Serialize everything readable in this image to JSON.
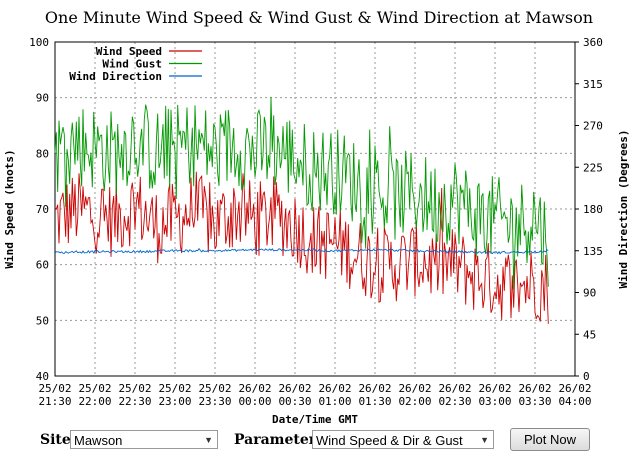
{
  "title": "One Minute Wind Speed & Wind Gust & Wind Direction at Mawson",
  "chart_data": {
    "type": "line",
    "title": "One Minute Wind Speed & Wind Gust & Wind Direction at Mawson",
    "xlabel": "Date/Time GMT",
    "ylabel": "Wind Speed (knots)",
    "y2label": "Wind Direction (Degrees)",
    "ylim": [
      40,
      100
    ],
    "y2lim": [
      0,
      360
    ],
    "yticks": [
      "100",
      "90",
      "80",
      "70",
      "60",
      "50",
      "40"
    ],
    "y2ticks": [
      "360",
      "315",
      "270",
      "225",
      "180",
      "135",
      "90",
      "45",
      "0"
    ],
    "xticks": [
      {
        "date": "25/02",
        "time": "21:30"
      },
      {
        "date": "25/02",
        "time": "22:00"
      },
      {
        "date": "25/02",
        "time": "22:30"
      },
      {
        "date": "25/02",
        "time": "23:00"
      },
      {
        "date": "25/02",
        "time": "23:30"
      },
      {
        "date": "26/02",
        "time": "00:00"
      },
      {
        "date": "26/02",
        "time": "00:30"
      },
      {
        "date": "26/02",
        "time": "01:00"
      },
      {
        "date": "26/02",
        "time": "01:30"
      },
      {
        "date": "26/02",
        "time": "02:00"
      },
      {
        "date": "26/02",
        "time": "02:30"
      },
      {
        "date": "26/02",
        "time": "03:00"
      },
      {
        "date": "26/02",
        "time": "03:30"
      },
      {
        "date": "26/02",
        "time": "04:00"
      }
    ],
    "x_unit": "minutes since 25/02 21:30 GMT",
    "xlim": [
      0,
      390
    ],
    "grid": true,
    "legend_position": "top-left",
    "series": [
      {
        "name": "Wind Speed",
        "axis": "left",
        "color": "#cc0000",
        "x": [
          0,
          15,
          30,
          45,
          60,
          75,
          90,
          105,
          120,
          135,
          150,
          165,
          180,
          195,
          210,
          225,
          240,
          255,
          270,
          285,
          300,
          315,
          330,
          345,
          360,
          370
        ],
        "values": [
          68,
          70,
          69,
          68,
          71,
          67,
          68,
          70,
          67,
          70,
          68,
          69,
          67,
          64,
          64,
          62,
          60,
          60,
          61,
          60,
          60,
          58,
          57,
          56,
          57,
          56
        ]
      },
      {
        "name": "Wind Gust",
        "axis": "left",
        "color": "#009900",
        "x": [
          0,
          15,
          30,
          45,
          60,
          75,
          90,
          105,
          120,
          135,
          150,
          165,
          180,
          195,
          210,
          225,
          240,
          255,
          270,
          285,
          300,
          315,
          330,
          345,
          360,
          370
        ],
        "values": [
          80,
          82,
          81,
          80,
          83,
          80,
          81,
          82,
          80,
          82,
          80,
          81,
          79,
          77,
          77,
          75,
          73,
          72,
          73,
          71,
          72,
          69,
          68,
          67,
          69,
          64
        ]
      },
      {
        "name": "Wind Direction",
        "axis": "right",
        "color": "#0066cc",
        "x": [
          0,
          30,
          60,
          90,
          120,
          150,
          180,
          210,
          240,
          270,
          300,
          330,
          360,
          370
        ],
        "values": [
          133,
          134,
          134,
          135,
          135,
          136,
          136,
          135,
          136,
          135,
          134,
          133,
          134,
          135
        ]
      }
    ]
  },
  "controls": {
    "site_label": "Site",
    "site_value": "Mawson",
    "parameter_label": "Parameter",
    "parameter_value": "Wind Speed & Dir & Gust",
    "plot_button": "Plot Now"
  }
}
